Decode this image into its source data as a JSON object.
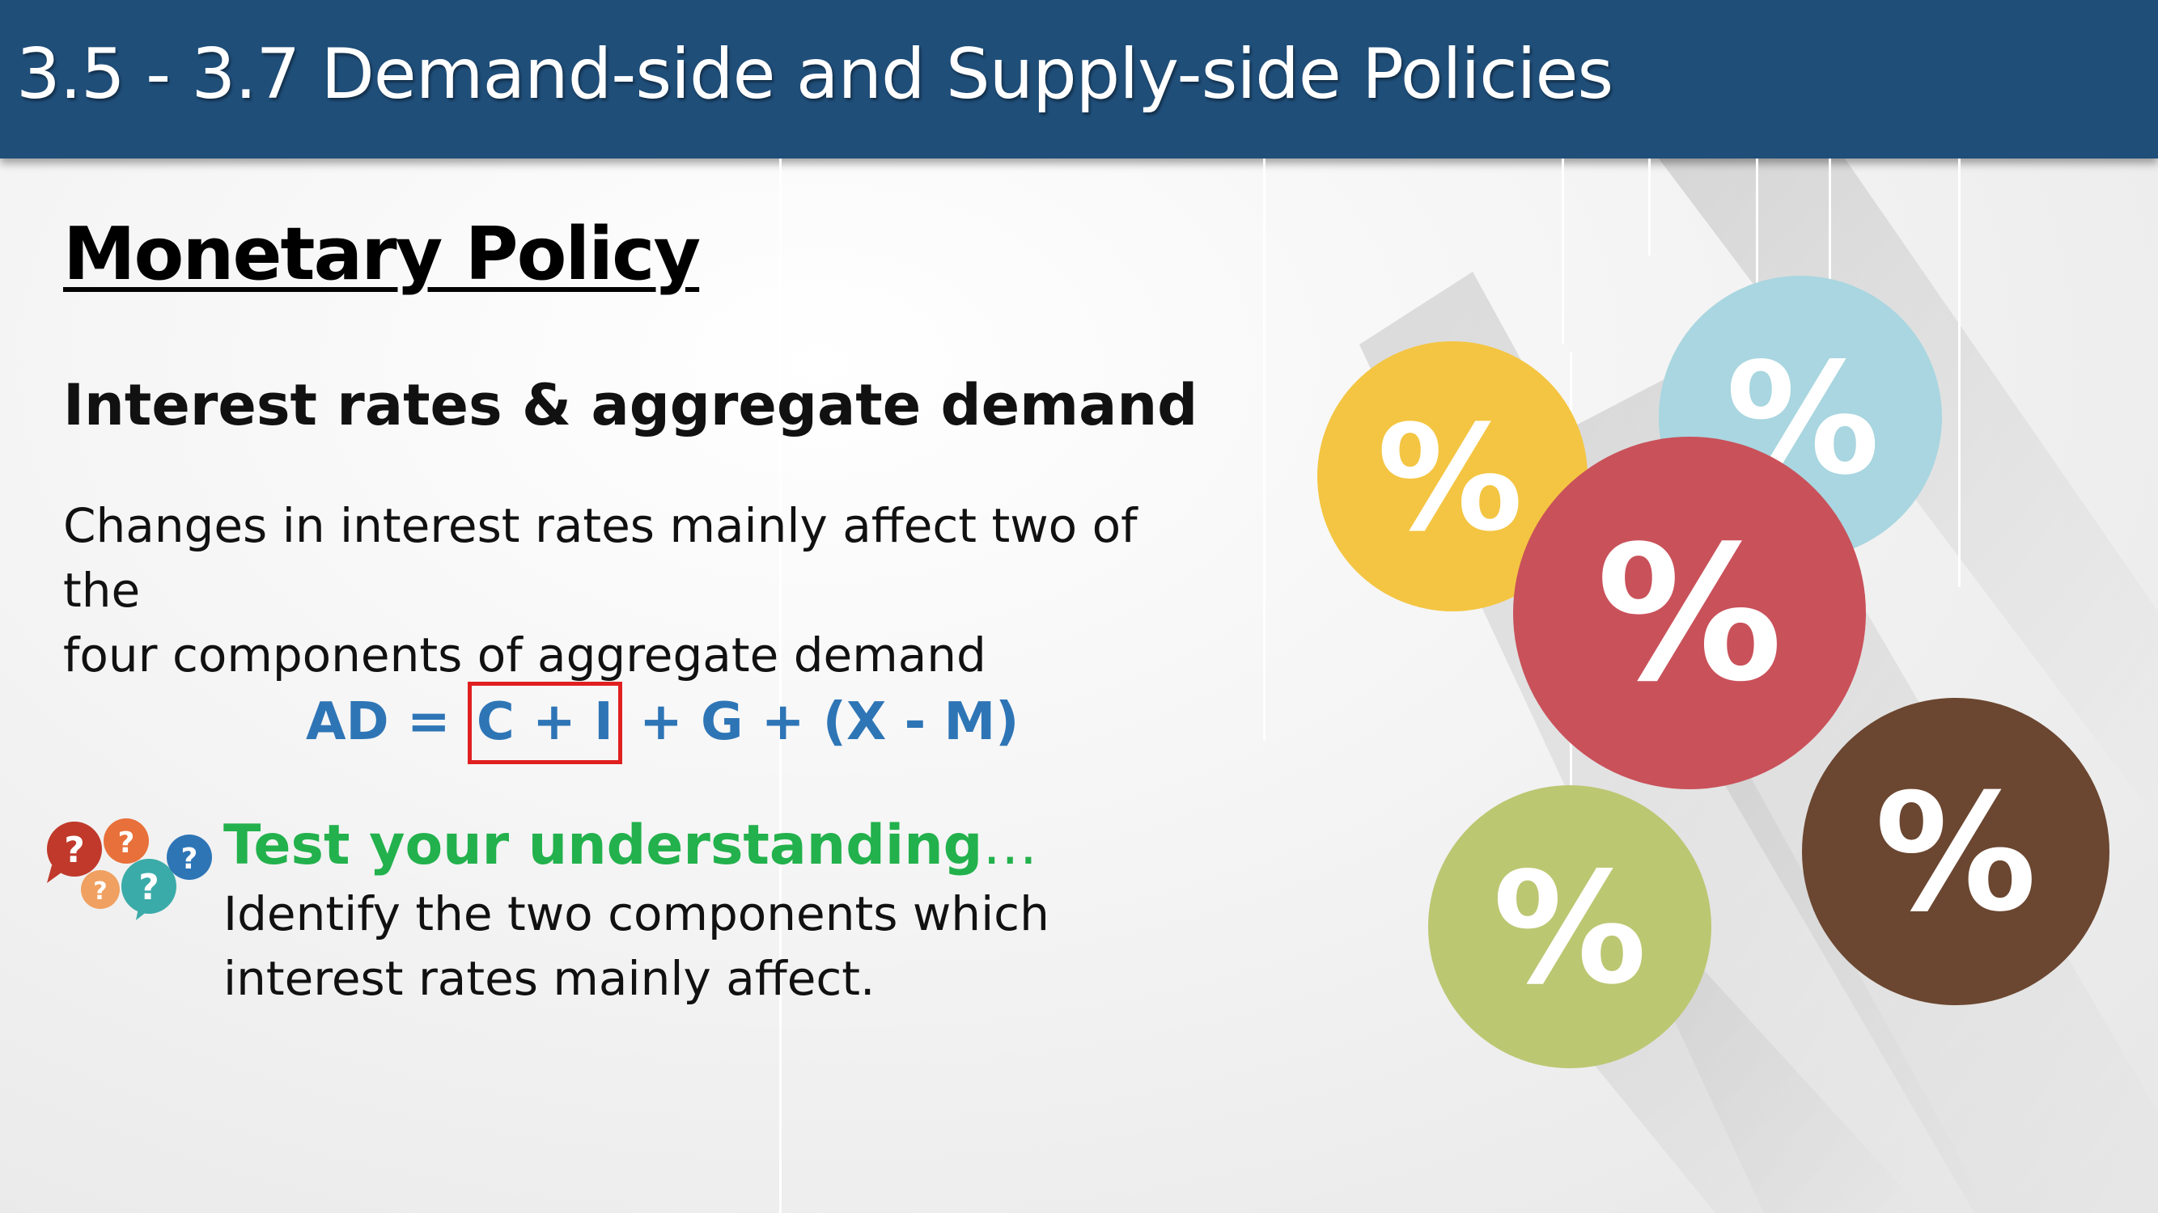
{
  "header": {
    "title": "3.5 - 3.7 Demand-side and Supply-side Policies"
  },
  "section": {
    "title": "Monetary Policy"
  },
  "subheading": "Interest rates & aggregate demand",
  "body": {
    "line1": "Changes in interest rates mainly affect two of the",
    "line2": "four components of aggregate demand"
  },
  "equation": {
    "prefix": "AD =",
    "highlighted": "C + I",
    "suffix": "+ G + (X - M)",
    "highlight_color": "#e02020",
    "text_color": "#2e75b6"
  },
  "test": {
    "heading": "Test your understanding",
    "ellipsis": "…",
    "line1": "Identify the two components which",
    "line2": "interest rates mainly affect.",
    "heading_color": "#22b14c"
  },
  "question_icon": {
    "glyph": "?",
    "colors": [
      "#c0392b",
      "#e8703a",
      "#f0a060",
      "#3aaba8",
      "#2e75b6"
    ]
  },
  "decor": {
    "symbol": "%",
    "circle_colors": [
      "#f4c542",
      "#a9d6e0",
      "#c9515a",
      "#bcc772",
      "#6b4630"
    ]
  }
}
